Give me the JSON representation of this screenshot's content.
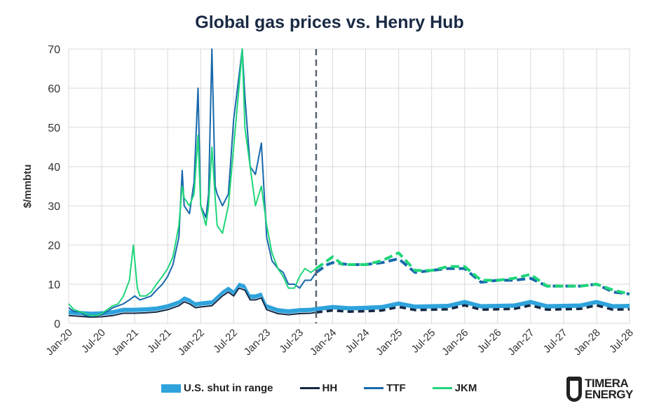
{
  "chart_data": {
    "type": "line",
    "title": "Global gas prices vs. Henry Hub",
    "ylabel": "$/mmbtu",
    "xlabel": "",
    "ylim": [
      0,
      70
    ],
    "yticks": [
      0,
      10,
      20,
      30,
      40,
      50,
      60,
      70
    ],
    "xlim": [
      2020.0,
      2028.5
    ],
    "xticks": [
      "Jan-20",
      "Jul-20",
      "Jan-21",
      "Jul-21",
      "Jan-22",
      "Jul-22",
      "Jan-23",
      "Jul-23",
      "Jan-24",
      "Jul-24",
      "Jan-25",
      "Jul-25",
      "Jan-26",
      "Jul-26",
      "Jan-27",
      "Jul-27",
      "Jan-28",
      "Jul-28"
    ],
    "forecast_start": 2023.75,
    "grid": true,
    "legend_position": "bottom",
    "colors": {
      "shut": "#2ea3dc",
      "HH": "#152742",
      "TTF": "#1768ac",
      "JKM": "#1fd67a",
      "divider": "#5a6470"
    },
    "series": [
      {
        "name": "TTF",
        "points": [
          [
            2020,
            4
          ],
          [
            2020.08,
            3
          ],
          [
            2020.17,
            3
          ],
          [
            2020.25,
            2
          ],
          [
            2020.33,
            1.8
          ],
          [
            2020.42,
            2
          ],
          [
            2020.5,
            2.2
          ],
          [
            2020.58,
            3
          ],
          [
            2020.67,
            4
          ],
          [
            2020.75,
            4.5
          ],
          [
            2020.83,
            5
          ],
          [
            2020.92,
            6
          ],
          [
            2021,
            7
          ],
          [
            2021.08,
            6
          ],
          [
            2021.17,
            6.5
          ],
          [
            2021.25,
            7
          ],
          [
            2021.33,
            8.5
          ],
          [
            2021.42,
            10
          ],
          [
            2021.5,
            12
          ],
          [
            2021.58,
            15
          ],
          [
            2021.67,
            22
          ],
          [
            2021.72,
            39
          ],
          [
            2021.75,
            30
          ],
          [
            2021.83,
            28
          ],
          [
            2021.9,
            36
          ],
          [
            2021.96,
            60
          ],
          [
            2022,
            30
          ],
          [
            2022.08,
            27
          ],
          [
            2022.12,
            33
          ],
          [
            2022.17,
            70
          ],
          [
            2022.22,
            35
          ],
          [
            2022.25,
            33
          ],
          [
            2022.33,
            30
          ],
          [
            2022.42,
            33
          ],
          [
            2022.5,
            52
          ],
          [
            2022.58,
            63
          ],
          [
            2022.63,
            70
          ],
          [
            2022.67,
            58
          ],
          [
            2022.75,
            40
          ],
          [
            2022.83,
            38
          ],
          [
            2022.92,
            46
          ],
          [
            2023,
            22
          ],
          [
            2023.08,
            16
          ],
          [
            2023.17,
            14
          ],
          [
            2023.25,
            13
          ],
          [
            2023.33,
            10
          ],
          [
            2023.42,
            10
          ],
          [
            2023.5,
            9
          ],
          [
            2023.58,
            11
          ],
          [
            2023.67,
            11
          ],
          [
            2023.75,
            13
          ]
        ],
        "forecast": [
          [
            2023.75,
            13
          ],
          [
            2023.92,
            15
          ],
          [
            2024,
            15.5
          ],
          [
            2024.25,
            15
          ],
          [
            2024.5,
            15
          ],
          [
            2024.75,
            15.5
          ],
          [
            2025,
            16.5
          ],
          [
            2025.25,
            13
          ],
          [
            2025.5,
            13.5
          ],
          [
            2025.75,
            14
          ],
          [
            2026,
            14
          ],
          [
            2026.25,
            10.5
          ],
          [
            2026.5,
            11
          ],
          [
            2026.75,
            11
          ],
          [
            2027,
            11.5
          ],
          [
            2027.25,
            9.5
          ],
          [
            2027.5,
            9.5
          ],
          [
            2027.75,
            9.5
          ],
          [
            2028,
            10
          ],
          [
            2028.25,
            8
          ],
          [
            2028.5,
            7.5
          ]
        ]
      },
      {
        "name": "JKM",
        "points": [
          [
            2020,
            5
          ],
          [
            2020.08,
            3.5
          ],
          [
            2020.17,
            3
          ],
          [
            2020.25,
            2.5
          ],
          [
            2020.33,
            2
          ],
          [
            2020.42,
            2
          ],
          [
            2020.5,
            2.5
          ],
          [
            2020.58,
            3.5
          ],
          [
            2020.67,
            4.5
          ],
          [
            2020.75,
            5
          ],
          [
            2020.83,
            7
          ],
          [
            2020.92,
            11
          ],
          [
            2020.98,
            20
          ],
          [
            2021.04,
            9
          ],
          [
            2021.08,
            7
          ],
          [
            2021.17,
            7
          ],
          [
            2021.25,
            8
          ],
          [
            2021.33,
            10
          ],
          [
            2021.42,
            12
          ],
          [
            2021.5,
            14
          ],
          [
            2021.58,
            17
          ],
          [
            2021.67,
            25
          ],
          [
            2021.72,
            35
          ],
          [
            2021.75,
            32
          ],
          [
            2021.83,
            30
          ],
          [
            2021.9,
            33
          ],
          [
            2021.96,
            48
          ],
          [
            2022,
            30
          ],
          [
            2022.08,
            25
          ],
          [
            2022.12,
            30
          ],
          [
            2022.17,
            45
          ],
          [
            2022.22,
            32
          ],
          [
            2022.25,
            25
          ],
          [
            2022.33,
            23
          ],
          [
            2022.42,
            30
          ],
          [
            2022.5,
            45
          ],
          [
            2022.58,
            60
          ],
          [
            2022.63,
            70
          ],
          [
            2022.67,
            50
          ],
          [
            2022.75,
            40
          ],
          [
            2022.83,
            30
          ],
          [
            2022.92,
            35
          ],
          [
            2023,
            25
          ],
          [
            2023.08,
            18
          ],
          [
            2023.17,
            14
          ],
          [
            2023.25,
            12
          ],
          [
            2023.33,
            9
          ],
          [
            2023.42,
            9
          ],
          [
            2023.5,
            12
          ],
          [
            2023.58,
            14
          ],
          [
            2023.67,
            13
          ],
          [
            2023.75,
            14
          ]
        ],
        "forecast": [
          [
            2023.75,
            14
          ],
          [
            2023.92,
            16
          ],
          [
            2024,
            17
          ],
          [
            2024.15,
            15
          ],
          [
            2024.5,
            15
          ],
          [
            2024.75,
            16
          ],
          [
            2025,
            18
          ],
          [
            2025.25,
            13.5
          ],
          [
            2025.5,
            13.5
          ],
          [
            2025.75,
            14.5
          ],
          [
            2026,
            14.5
          ],
          [
            2026.25,
            11
          ],
          [
            2026.5,
            11
          ],
          [
            2026.75,
            11.5
          ],
          [
            2027,
            12.5
          ],
          [
            2027.25,
            9.5
          ],
          [
            2027.5,
            9.5
          ],
          [
            2027.75,
            9.5
          ],
          [
            2028,
            10
          ],
          [
            2028.25,
            8.5
          ],
          [
            2028.5,
            7.5
          ]
        ]
      },
      {
        "name": "HH",
        "points": [
          [
            2020,
            2
          ],
          [
            2020.17,
            1.8
          ],
          [
            2020.33,
            1.6
          ],
          [
            2020.5,
            1.7
          ],
          [
            2020.67,
            2
          ],
          [
            2020.83,
            2.6
          ],
          [
            2021,
            2.6
          ],
          [
            2021.17,
            2.7
          ],
          [
            2021.33,
            2.9
          ],
          [
            2021.5,
            3.5
          ],
          [
            2021.67,
            4.5
          ],
          [
            2021.75,
            5.5
          ],
          [
            2021.83,
            5
          ],
          [
            2021.92,
            4
          ],
          [
            2022,
            4.2
          ],
          [
            2022.17,
            4.5
          ],
          [
            2022.33,
            7
          ],
          [
            2022.42,
            8
          ],
          [
            2022.5,
            7
          ],
          [
            2022.58,
            9
          ],
          [
            2022.67,
            8.5
          ],
          [
            2022.75,
            6
          ],
          [
            2022.83,
            6
          ],
          [
            2022.92,
            6.5
          ],
          [
            2023,
            3.5
          ],
          [
            2023.17,
            2.5
          ],
          [
            2023.33,
            2.2
          ],
          [
            2023.5,
            2.5
          ],
          [
            2023.67,
            2.6
          ],
          [
            2023.75,
            2.8
          ]
        ],
        "forecast": [
          [
            2023.75,
            2.8
          ],
          [
            2024,
            3.3
          ],
          [
            2024.25,
            3
          ],
          [
            2024.5,
            3.1
          ],
          [
            2024.75,
            3.3
          ],
          [
            2025,
            4.2
          ],
          [
            2025.25,
            3.4
          ],
          [
            2025.5,
            3.5
          ],
          [
            2025.75,
            3.6
          ],
          [
            2026,
            4.6
          ],
          [
            2026.25,
            3.5
          ],
          [
            2026.5,
            3.6
          ],
          [
            2026.75,
            3.7
          ],
          [
            2027,
            4.6
          ],
          [
            2027.25,
            3.5
          ],
          [
            2027.5,
            3.6
          ],
          [
            2027.75,
            3.7
          ],
          [
            2028,
            4.6
          ],
          [
            2028.25,
            3.5
          ],
          [
            2028.5,
            3.6
          ]
        ]
      },
      {
        "name": "U.S. shut in range",
        "band_width": 1.4
      }
    ]
  },
  "legend": {
    "items": [
      "U.S. shut in range",
      "HH",
      "TTF",
      "JKM"
    ]
  },
  "logo": {
    "line1": "TIMERA",
    "line2": "ENERGY"
  }
}
